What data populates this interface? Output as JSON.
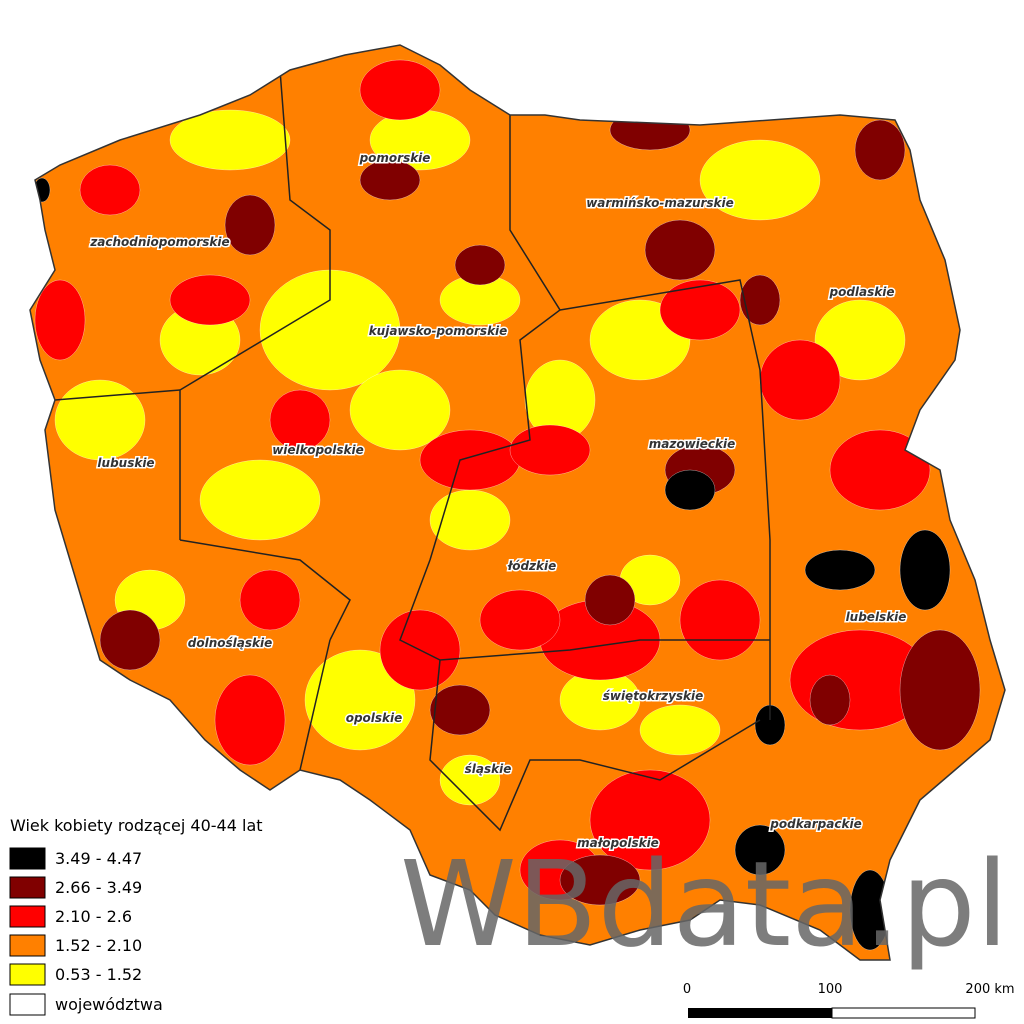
{
  "legend": {
    "title": "Wiek kobiety rodzącej 40-44 lat",
    "classes": [
      {
        "label": "3.49 - 4.47",
        "color": "#000000"
      },
      {
        "label": "2.66 - 3.49",
        "color": "#800000"
      },
      {
        "label": "2.10 - 2.6",
        "color": "#ff0000"
      },
      {
        "label": "1.52 - 2.10",
        "color": "#ff8000"
      },
      {
        "label": "0.53 - 1.52",
        "color": "#ffff00"
      }
    ],
    "boundary_label": "województwa"
  },
  "regions": [
    "pomorskie",
    "warmińsko-mazurskie",
    "zachodniopomorskie",
    "podlaskie",
    "kujawsko-pomorskie",
    "mazowieckie",
    "wielkopolskie",
    "lubuskie",
    "łódzkie",
    "lubelskie",
    "dolnośląskie",
    "świętokrzyskie",
    "opolskie",
    "śląskie",
    "podkarpackie",
    "małopolskie"
  ],
  "scale_bar": {
    "labels": [
      "0",
      "100",
      "200 km"
    ]
  },
  "watermark": "WBdata.pl"
}
